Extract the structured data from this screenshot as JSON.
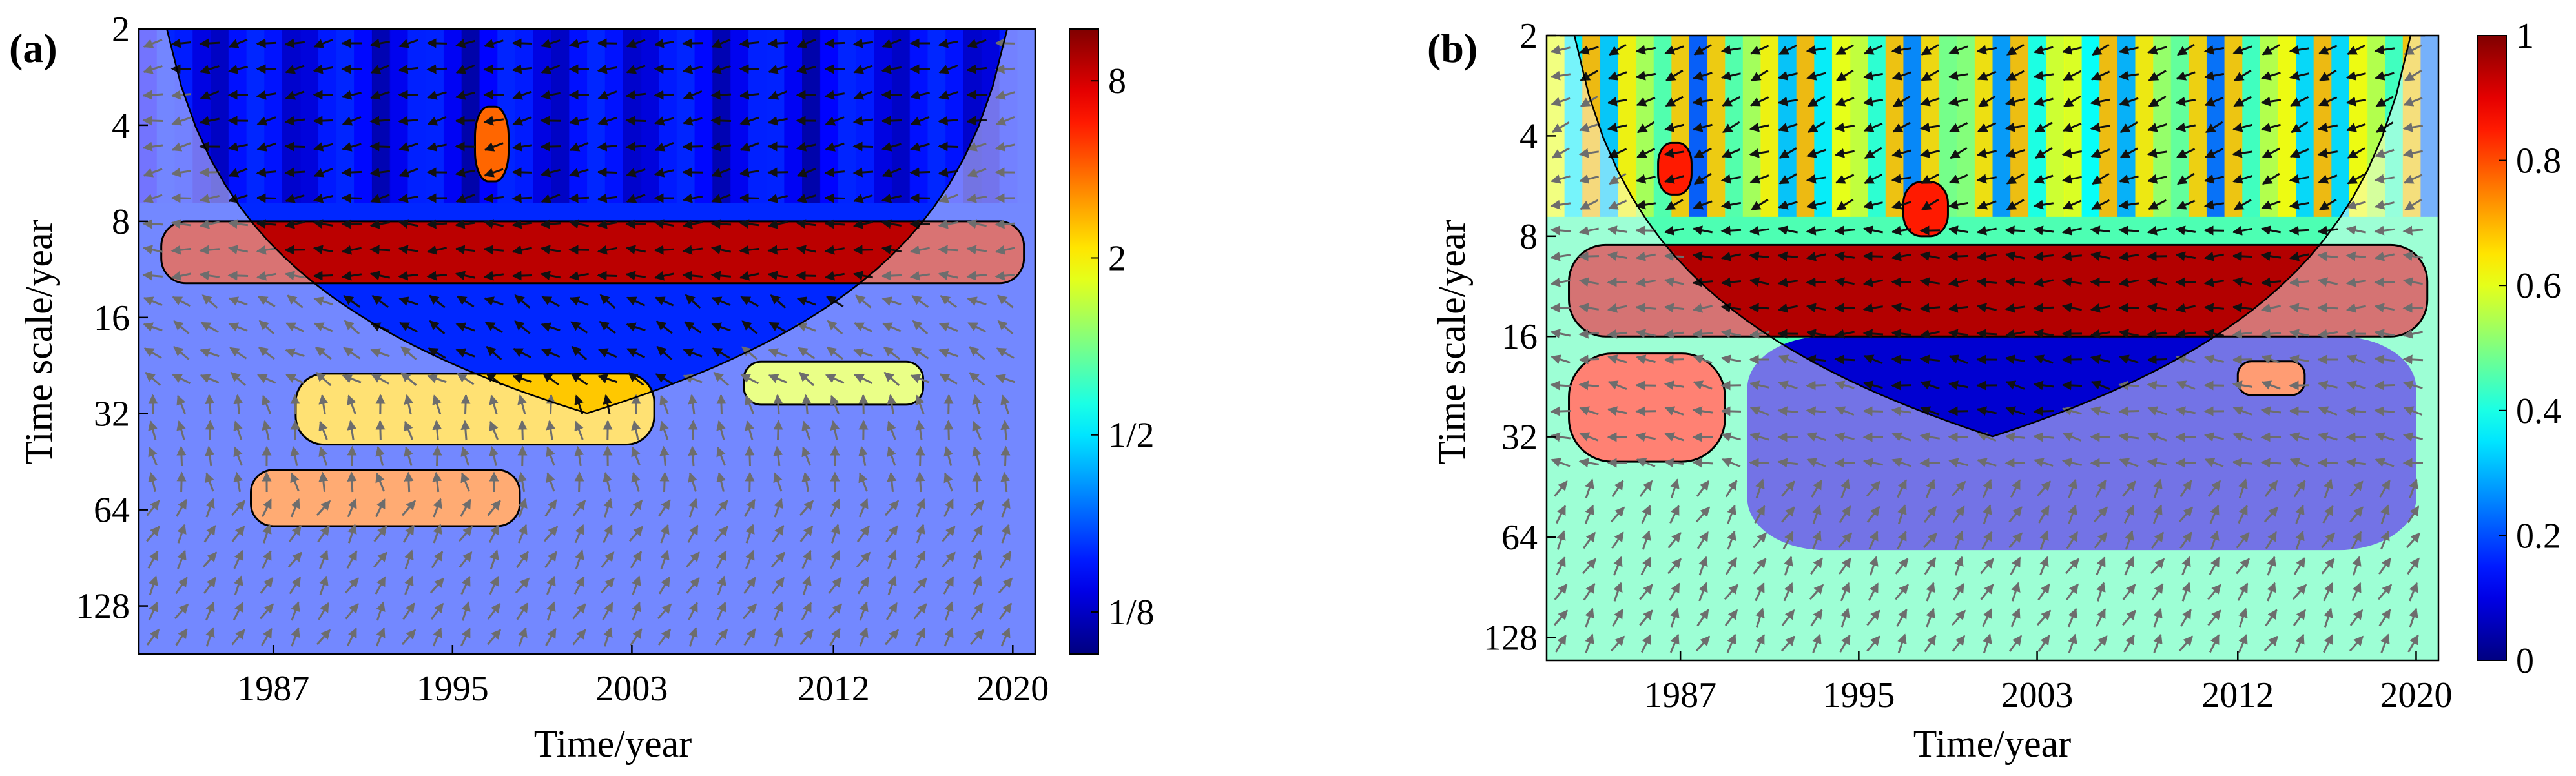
{
  "chart_data": [
    {
      "panel_label": "(a)",
      "type": "heatmap",
      "subtype": "cross-wavelet-transform",
      "xlabel": "Time/year",
      "ylabel": "Time scale/year",
      "xlim": [
        1981,
        2021
      ],
      "xticks": [
        1987,
        1995,
        2003,
        2012,
        2020
      ],
      "xtick_labels": [
        "1987",
        "1995",
        "2003",
        "2012",
        "2020"
      ],
      "ylim_period": [
        2,
        181
      ],
      "yticks": [
        2,
        4,
        8,
        16,
        32,
        64,
        128
      ],
      "ytick_labels": [
        "2",
        "4",
        "8",
        "16",
        "32",
        "64",
        "128"
      ],
      "colorbar": {
        "scale": "log2",
        "range": [
          0.09,
          12
        ],
        "ticks": [
          0.125,
          0.5,
          2,
          8
        ],
        "tick_labels": [
          "1/8",
          "1/2",
          "2",
          "8"
        ]
      },
      "significant_regions": [
        {
          "t_start": 1982,
          "t_end": 2020.5,
          "period_low": 8,
          "period_high": 12.5,
          "level": 9
        },
        {
          "t_start": 1996,
          "t_end": 1997.5,
          "period_low": 3.5,
          "period_high": 6,
          "level": 4
        },
        {
          "t_start": 1986,
          "t_end": 1998,
          "period_low": 48,
          "period_high": 72,
          "level": 4
        },
        {
          "t_start": 1988,
          "t_end": 2004,
          "period_low": 24,
          "period_high": 40,
          "level": 2.5
        },
        {
          "t_start": 2008,
          "t_end": 2016,
          "period_low": 22,
          "period_high": 30,
          "level": 1.6
        }
      ],
      "arrow_phase_by_band": [
        {
          "period_low": 2,
          "period_high": 7,
          "angle_deg": 190
        },
        {
          "period_low": 7,
          "period_high": 14,
          "angle_deg": 180
        },
        {
          "period_low": 14,
          "period_high": 30,
          "angle_deg": 150
        },
        {
          "period_low": 30,
          "period_high": 60,
          "angle_deg": 100
        },
        {
          "period_low": 60,
          "period_high": 181,
          "angle_deg": 60
        }
      ]
    },
    {
      "panel_label": "(b)",
      "type": "heatmap",
      "subtype": "wavelet-coherence",
      "xlabel": "Time/year",
      "ylabel": "Time scale/year",
      "xlim": [
        1981,
        2021
      ],
      "xticks": [
        1987,
        1995,
        2003,
        2012,
        2020
      ],
      "xtick_labels": [
        "1987",
        "1995",
        "2003",
        "2012",
        "2020"
      ],
      "ylim_period": [
        2,
        150
      ],
      "yticks": [
        2,
        4,
        8,
        16,
        32,
        64,
        128
      ],
      "ytick_labels": [
        "2",
        "4",
        "8",
        "16",
        "32",
        "64",
        "128"
      ],
      "colorbar": {
        "scale": "linear",
        "range": [
          0,
          1
        ],
        "ticks": [
          0,
          0.2,
          0.4,
          0.6,
          0.8,
          1
        ],
        "tick_labels": [
          "0",
          "0.2",
          "0.4",
          "0.6",
          "0.8",
          "1"
        ]
      },
      "significant_regions": [
        {
          "t_start": 1982,
          "t_end": 2020.5,
          "period_low": 8.5,
          "period_high": 16,
          "level": 0.95
        },
        {
          "t_start": 1982,
          "t_end": 1989,
          "period_low": 18,
          "period_high": 38,
          "level": 0.85
        },
        {
          "t_start": 2012,
          "t_end": 2015,
          "period_low": 19,
          "period_high": 24,
          "level": 0.8
        },
        {
          "t_start": 1986,
          "t_end": 1987.5,
          "period_low": 4.2,
          "period_high": 6,
          "level": 0.85
        },
        {
          "t_start": 1997,
          "t_end": 1999,
          "period_low": 5.5,
          "period_high": 8,
          "level": 0.85
        }
      ],
      "low_coherence_region": {
        "t_start": 1990,
        "t_end": 2020,
        "period_low": 16,
        "period_high": 70,
        "level": 0.08
      },
      "arrow_phase_by_band": [
        {
          "period_low": 2,
          "period_high": 7,
          "angle_deg": 200
        },
        {
          "period_low": 7,
          "period_high": 16,
          "angle_deg": 180
        },
        {
          "period_low": 16,
          "period_high": 40,
          "angle_deg": 170
        },
        {
          "period_low": 40,
          "period_high": 150,
          "angle_deg": 60
        }
      ]
    }
  ]
}
